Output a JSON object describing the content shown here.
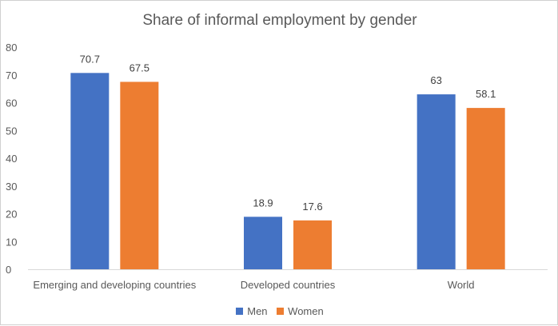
{
  "chart_data": {
    "type": "bar",
    "title": "Share of informal employment by gender",
    "xlabel": "",
    "ylabel": "",
    "categories": [
      "Emerging and developing countries",
      "Developed countries",
      "World"
    ],
    "series": [
      {
        "name": "Men",
        "color": "#4472C4",
        "values": [
          70.7,
          18.9,
          63
        ]
      },
      {
        "name": "Women",
        "color": "#ED7D31",
        "values": [
          67.5,
          17.6,
          58.1
        ]
      }
    ],
    "ylim": [
      0,
      80
    ],
    "yticks": [
      0,
      10,
      20,
      30,
      40,
      50,
      60,
      70,
      80
    ],
    "grid": false,
    "legend_position": "bottom"
  }
}
